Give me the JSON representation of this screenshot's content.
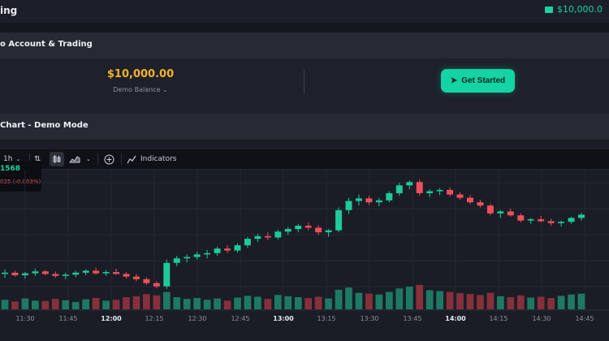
{
  "header": {
    "title": "ing",
    "balance": "$10,000.0"
  },
  "account": {
    "title": "o Account & Trading",
    "balance": "$10,000.00",
    "balance_caption": "Demo Balance",
    "cta_label": "Get Started"
  },
  "chart_section": {
    "title": "Chart - Demo Mode"
  },
  "toolbar": {
    "interval": "1h",
    "indicators_label": "Indicators"
  },
  "ticker": {
    "price": "1568",
    "change": "025 (-0.003%)"
  },
  "chart_data": {
    "type": "candlestick",
    "x_ticks": [
      "11:30",
      "11:45",
      "12:00",
      "12:15",
      "12:30",
      "12:45",
      "13:00",
      "13:15",
      "13:30",
      "13:45",
      "14:00",
      "14:15",
      "14:30",
      "14:45"
    ],
    "x_ticks_bold": [
      "12:00",
      "13:00",
      "14:00"
    ],
    "candles": [
      [
        1568.28,
        1568.35,
        1568.22,
        1568.3
      ],
      [
        1568.3,
        1568.33,
        1568.24,
        1568.26
      ],
      [
        1568.26,
        1568.31,
        1568.21,
        1568.29
      ],
      [
        1568.29,
        1568.36,
        1568.25,
        1568.32
      ],
      [
        1568.32,
        1568.34,
        1568.26,
        1568.28
      ],
      [
        1568.28,
        1568.32,
        1568.22,
        1568.25
      ],
      [
        1568.25,
        1568.3,
        1568.2,
        1568.27
      ],
      [
        1568.27,
        1568.33,
        1568.23,
        1568.3
      ],
      [
        1568.3,
        1568.35,
        1568.26,
        1568.33
      ],
      [
        1568.33,
        1568.38,
        1568.27,
        1568.29
      ],
      [
        1568.29,
        1568.34,
        1568.25,
        1568.31
      ],
      [
        1568.31,
        1568.36,
        1568.27,
        1568.28
      ],
      [
        1568.28,
        1568.31,
        1568.21,
        1568.24
      ],
      [
        1568.24,
        1568.28,
        1568.17,
        1568.2
      ],
      [
        1568.2,
        1568.23,
        1568.11,
        1568.14
      ],
      [
        1568.14,
        1568.17,
        1568.06,
        1568.09
      ],
      [
        1568.09,
        1568.5,
        1568.05,
        1568.45
      ],
      [
        1568.45,
        1568.56,
        1568.4,
        1568.52
      ],
      [
        1568.52,
        1568.58,
        1568.46,
        1568.54
      ],
      [
        1568.54,
        1568.62,
        1568.5,
        1568.58
      ],
      [
        1568.58,
        1568.65,
        1568.52,
        1568.6
      ],
      [
        1568.6,
        1568.7,
        1568.56,
        1568.67
      ],
      [
        1568.67,
        1568.72,
        1568.6,
        1568.64
      ],
      [
        1568.64,
        1568.75,
        1568.61,
        1568.72
      ],
      [
        1568.72,
        1568.85,
        1568.68,
        1568.82
      ],
      [
        1568.82,
        1568.9,
        1568.77,
        1568.86
      ],
      [
        1568.86,
        1568.92,
        1568.8,
        1568.84
      ],
      [
        1568.84,
        1568.96,
        1568.81,
        1568.93
      ],
      [
        1568.93,
        1569.0,
        1568.88,
        1568.97
      ],
      [
        1568.97,
        1569.05,
        1568.92,
        1569.02
      ],
      [
        1569.02,
        1569.07,
        1568.95,
        1568.99
      ],
      [
        1568.99,
        1569.03,
        1568.88,
        1568.92
      ],
      [
        1568.92,
        1568.97,
        1568.85,
        1568.95
      ],
      [
        1568.95,
        1569.3,
        1568.92,
        1569.26
      ],
      [
        1569.26,
        1569.45,
        1569.2,
        1569.4
      ],
      [
        1569.4,
        1569.5,
        1569.33,
        1569.44
      ],
      [
        1569.44,
        1569.48,
        1569.34,
        1569.38
      ],
      [
        1569.38,
        1569.45,
        1569.32,
        1569.41
      ],
      [
        1569.41,
        1569.55,
        1569.38,
        1569.52
      ],
      [
        1569.52,
        1569.68,
        1569.48,
        1569.64
      ],
      [
        1569.64,
        1569.72,
        1569.58,
        1569.69
      ],
      [
        1569.69,
        1569.73,
        1569.48,
        1569.52
      ],
      [
        1569.52,
        1569.58,
        1569.46,
        1569.55
      ],
      [
        1569.55,
        1569.6,
        1569.49,
        1569.57
      ],
      [
        1569.57,
        1569.61,
        1569.47,
        1569.5
      ],
      [
        1569.5,
        1569.54,
        1569.42,
        1569.45
      ],
      [
        1569.45,
        1569.49,
        1569.35,
        1569.38
      ],
      [
        1569.38,
        1569.42,
        1569.3,
        1569.33
      ],
      [
        1569.33,
        1569.36,
        1569.18,
        1569.21
      ],
      [
        1569.21,
        1569.26,
        1569.14,
        1569.24
      ],
      [
        1569.24,
        1569.28,
        1569.16,
        1569.18
      ],
      [
        1569.18,
        1569.21,
        1569.07,
        1569.1
      ],
      [
        1569.1,
        1569.14,
        1569.05,
        1569.12
      ],
      [
        1569.12,
        1569.17,
        1569.07,
        1569.09
      ],
      [
        1569.09,
        1569.13,
        1569.02,
        1569.06
      ],
      [
        1569.06,
        1569.1,
        1569.01,
        1569.08
      ],
      [
        1569.08,
        1569.16,
        1569.05,
        1569.14
      ],
      [
        1569.14,
        1569.22,
        1569.1,
        1569.19
      ]
    ],
    "volumes": [
      22,
      18,
      25,
      20,
      19,
      24,
      21,
      17,
      23,
      26,
      20,
      22,
      28,
      30,
      35,
      32,
      40,
      28,
      24,
      26,
      22,
      25,
      20,
      27,
      31,
      29,
      24,
      33,
      30,
      28,
      26,
      29,
      25,
      45,
      50,
      38,
      36,
      34,
      40,
      48,
      52,
      56,
      44,
      42,
      40,
      37,
      35,
      33,
      38,
      30,
      28,
      32,
      27,
      29,
      26,
      31,
      34,
      36
    ]
  }
}
